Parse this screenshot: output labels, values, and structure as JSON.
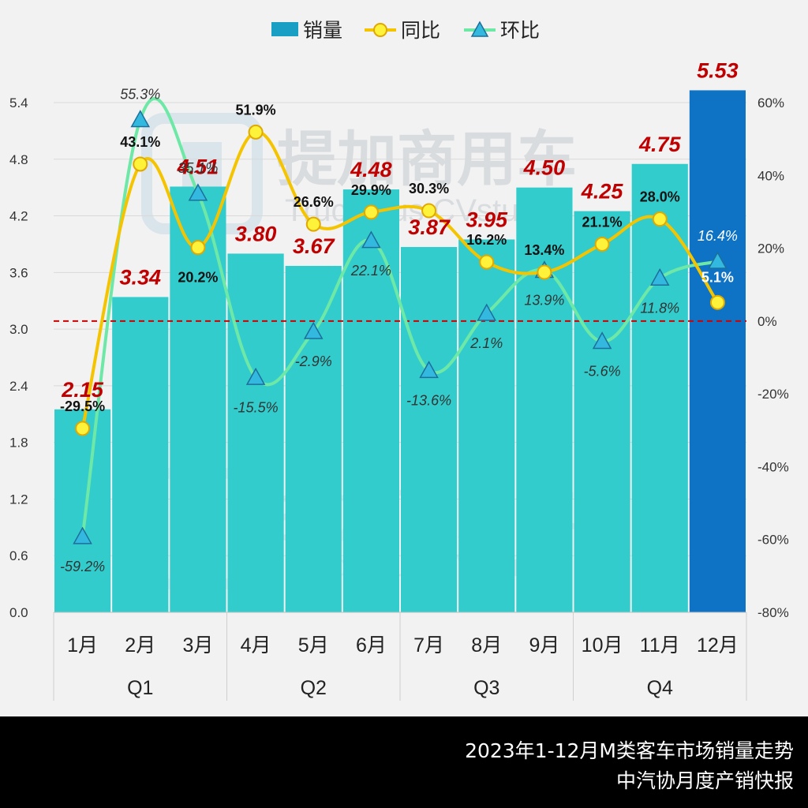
{
  "chart_data": {
    "type": "bar+line",
    "categories": [
      "1月",
      "2月",
      "3月",
      "4月",
      "5月",
      "6月",
      "7月",
      "8月",
      "9月",
      "10月",
      "11月",
      "12月"
    ],
    "quarters": [
      {
        "label": "Q1"
      },
      {
        "label": "Q2"
      },
      {
        "label": "Q3"
      },
      {
        "label": "Q4"
      }
    ],
    "series": [
      {
        "name": "销量",
        "kind": "bar",
        "axis": "left",
        "values": [
          2.15,
          3.34,
          4.51,
          3.8,
          3.67,
          4.48,
          3.87,
          3.95,
          4.5,
          4.25,
          4.75,
          5.53
        ],
        "labels": [
          "2.15",
          "3.34",
          "4.51",
          "3.80",
          "3.67",
          "4.48",
          "3.87",
          "3.95",
          "4.50",
          "4.25",
          "4.75",
          "5.53"
        ],
        "color": "#33cccc",
        "highlight_color": "#0e72c5"
      },
      {
        "name": "同比",
        "kind": "line",
        "axis": "right",
        "values": [
          -29.5,
          43.1,
          20.2,
          51.9,
          26.6,
          29.9,
          30.3,
          16.2,
          13.4,
          21.1,
          28.0,
          5.1
        ],
        "labels": [
          "-29.5%",
          "43.1%",
          "20.2%",
          "51.9%",
          "26.6%",
          "29.9%",
          "30.3%",
          "16.2%",
          "13.4%",
          "21.1%",
          "28.0%",
          "5.1%"
        ],
        "color": "#f5c400"
      },
      {
        "name": "环比",
        "kind": "line",
        "axis": "right",
        "values": [
          -59.2,
          55.3,
          35.1,
          -15.5,
          -2.9,
          22.1,
          -13.6,
          2.1,
          13.9,
          -5.6,
          11.8,
          16.4
        ],
        "labels": [
          "-59.2%",
          "55.3%",
          "35.1%",
          "-15.5%",
          "-2.9%",
          "22.1%",
          "-13.6%",
          "2.1%",
          "13.9%",
          "-5.6%",
          "11.8%",
          "16.4%"
        ],
        "color": "#6ee8a6"
      }
    ],
    "y_left": {
      "min": 0,
      "max": 5.4,
      "ticks": [
        "0.0",
        "0.6",
        "1.2",
        "1.8",
        "2.4",
        "3.0",
        "3.6",
        "4.2",
        "4.8",
        "5.4"
      ]
    },
    "y_right": {
      "min": -80,
      "max": 60,
      "ticks": [
        "-80%",
        "-60%",
        "-40%",
        "-20%",
        "0%",
        "20%",
        "40%",
        "60%"
      ]
    },
    "reference_line": {
      "axis": "right",
      "value": 0,
      "color": "#d00000",
      "style": "dashed"
    },
    "legend_position": "top-center",
    "gridlines": true,
    "bar_label_color": "#c00000"
  },
  "watermark": {
    "brand": "提加商用车",
    "sub": "TruckPlus CVstudio"
  },
  "footer": {
    "title": "2023年1-12月M类客车市场销量走势",
    "source": "中汽协月度产销快报"
  }
}
